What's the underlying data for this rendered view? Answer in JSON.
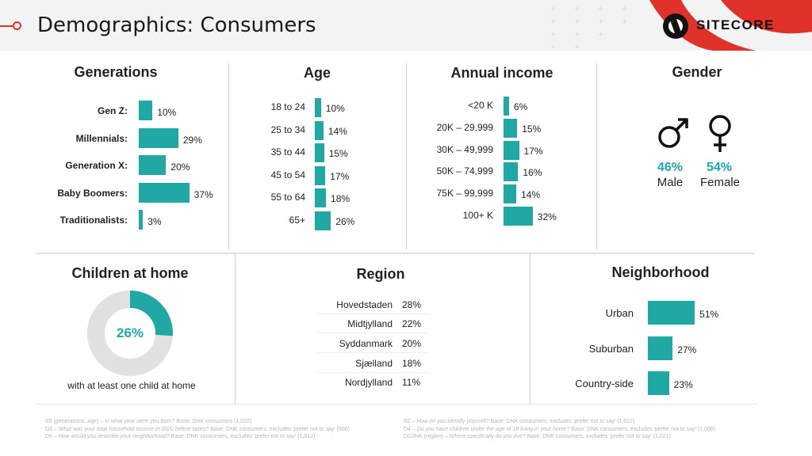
{
  "header": {
    "title": "Demographics: Consumers",
    "logo_text": "SITECORE",
    "accent_color": "#e0312b"
  },
  "colors": {
    "bar": "#1fa8a4",
    "donut_rest": "#e1e1e1"
  },
  "sections": {
    "generations": "Generations",
    "age": "Age",
    "income": "Annual income",
    "gender": "Gender",
    "children": "Children at home",
    "region": "Region",
    "neighborhood": "Neighborhood"
  },
  "chart_data": [
    {
      "id": "generations",
      "type": "bar",
      "orientation": "horizontal",
      "title": "Generations",
      "categories": [
        "Gen Z:",
        "Millennials:",
        "Generation X:",
        "Baby Boomers:",
        "Traditionalists:"
      ],
      "values": [
        10,
        29,
        20,
        37,
        3
      ],
      "value_labels": [
        "10%",
        "29%",
        "20%",
        "37%",
        "3%"
      ]
    },
    {
      "id": "age",
      "type": "bar",
      "orientation": "horizontal",
      "title": "Age",
      "categories": [
        "18 to 24",
        "25 to 34",
        "35 to 44",
        "45 to 54",
        "55 to 64",
        "65+"
      ],
      "values": [
        10,
        14,
        15,
        17,
        18,
        26
      ],
      "value_labels": [
        "10%",
        "14%",
        "15%",
        "17%",
        "18%",
        "26%"
      ]
    },
    {
      "id": "income",
      "type": "bar",
      "orientation": "horizontal",
      "title": "Annual income",
      "categories": [
        "<20 K",
        "20K – 29,999",
        "30K – 49,999",
        "50K – 74,999",
        "75K – 99,999",
        "100+ K"
      ],
      "values": [
        6,
        15,
        17,
        16,
        14,
        32
      ],
      "value_labels": [
        "6%",
        "15%",
        "17%",
        "16%",
        "14%",
        "32%"
      ]
    },
    {
      "id": "gender",
      "type": "table",
      "title": "Gender",
      "categories": [
        "Male",
        "Female"
      ],
      "values": [
        46,
        54
      ],
      "value_labels": [
        "46%",
        "54%"
      ],
      "icons": [
        "male-symbol-icon",
        "female-symbol-icon"
      ]
    },
    {
      "id": "children",
      "type": "pie",
      "title": "Children at home",
      "values": [
        26,
        74
      ],
      "center_label": "26%",
      "note": "with at least one child at home"
    },
    {
      "id": "region",
      "type": "table",
      "title": "Region",
      "categories": [
        "Hovedstaden",
        "Midtjylland",
        "Syddanmark",
        "Sjælland",
        "Nordjylland"
      ],
      "values": [
        28,
        22,
        20,
        18,
        11
      ],
      "value_labels": [
        "28%",
        "22%",
        "20%",
        "18%",
        "11%"
      ]
    },
    {
      "id": "neighborhood",
      "type": "bar",
      "orientation": "horizontal",
      "title": "Neighborhood",
      "categories": [
        "Urban",
        "Suburban",
        "Country-side"
      ],
      "values": [
        51,
        27,
        23
      ],
      "value_labels": [
        "51%",
        "27%",
        "23%"
      ]
    }
  ],
  "footnotes": {
    "left": [
      {
        "code": "S0 (generations, age) – ",
        "q": "In what year were you born?",
        "base": " Base: DNK consumers (1,022)"
      },
      {
        "code": "D3 – ",
        "q": "What was your total household income in 2020 before taxes?",
        "base": " Base: DNK consumers, excludes 'prefer not to say' (906)"
      },
      {
        "code": "D5 – ",
        "q": "How would you describe your neighborhood?",
        "base": " Base: DNK consumers, excludes 'prefer not to say' (1,012)"
      }
    ],
    "right": [
      {
        "code": "S2 – ",
        "q": "How do you identify yourself?",
        "base": " Base: DNK consumers, excludes 'prefer not to say' (1,022)"
      },
      {
        "code": "D4 – ",
        "q": "Do you have children under the age of 18 living in your home?",
        "base": " Base: DNK consumers, excludes 'prefer not to say' (1,008)"
      },
      {
        "code": "D1DNK (region) – ",
        "q": "Where specifically do you live?",
        "base": " Base: DNK consumers, excludes 'prefer not to say' (1,021)"
      }
    ]
  }
}
